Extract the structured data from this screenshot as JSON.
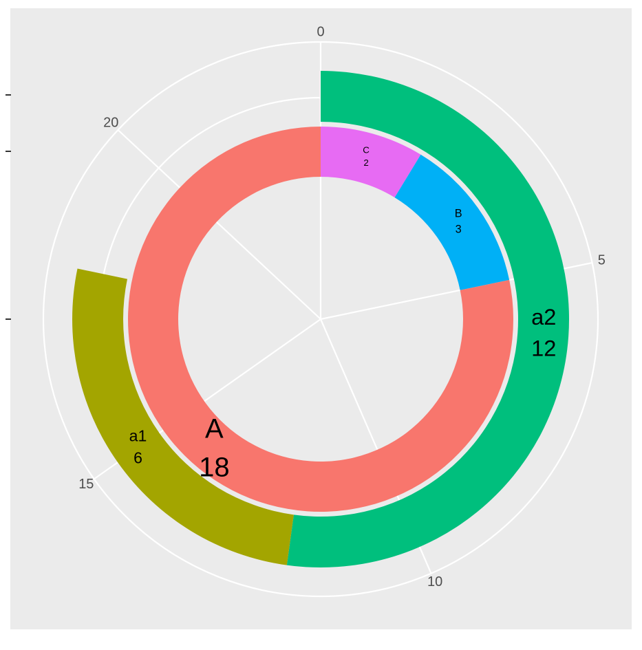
{
  "chart_data": {
    "type": "sunburst",
    "inner": {
      "categories": [
        "C",
        "B",
        "A"
      ],
      "values": [
        2,
        3,
        18
      ],
      "colors": [
        "#E76BF3",
        "#00B0F6",
        "#F8766D"
      ]
    },
    "outer": {
      "categories": [
        "a2",
        "a1"
      ],
      "values": [
        12,
        6
      ],
      "colors": [
        "#00BF7D",
        "#A3A500"
      ]
    },
    "xlim": [
      0,
      23
    ],
    "xticks": [
      0,
      5,
      10,
      15,
      20
    ],
    "grid": true
  }
}
